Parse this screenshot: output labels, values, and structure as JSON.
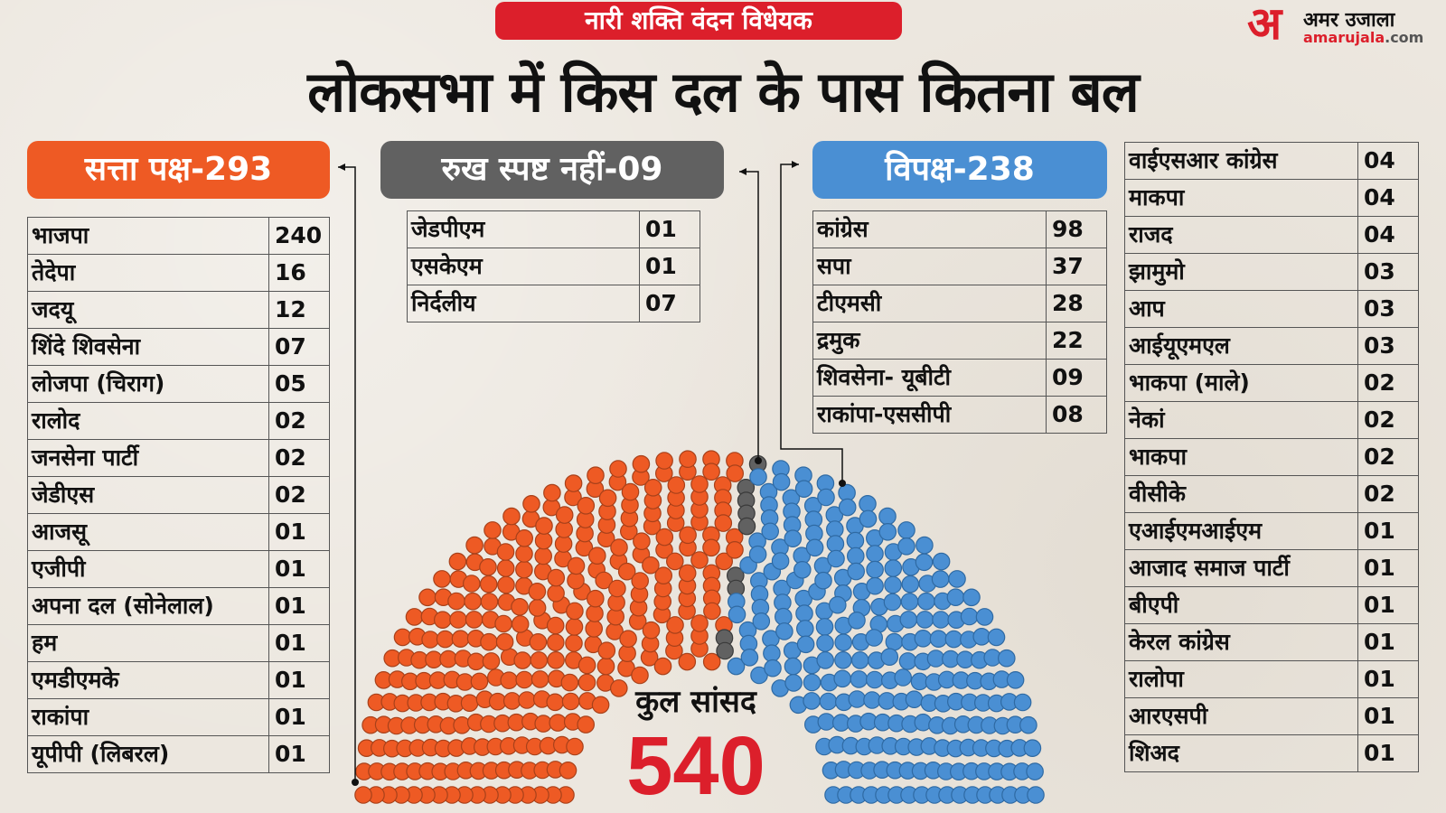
{
  "header": {
    "tag": "नारी शक्ति वंदन विधेयक",
    "headline": "लोकसभा में किस दल के पास कितना बल",
    "logo": {
      "mark": "अ",
      "hindi": "अमर उजाला",
      "site_main": "amarujala",
      "site_tld": ".com"
    }
  },
  "colors": {
    "ruling": "#ee5a24",
    "neutral": "#616161",
    "opposition": "#4a8fd3",
    "accent": "#dc1f2b"
  },
  "groups": {
    "ruling": {
      "label": "सत्ता पक्ष-293",
      "parties": [
        {
          "name": "भाजपा",
          "seats": "240"
        },
        {
          "name": "तेदेपा",
          "seats": "16"
        },
        {
          "name": "जदयू",
          "seats": "12"
        },
        {
          "name": "शिंदे शिवसेना",
          "seats": "07"
        },
        {
          "name": "लोजपा (चिराग)",
          "seats": "05"
        },
        {
          "name": "रालोद",
          "seats": "02"
        },
        {
          "name": "जनसेना पार्टी",
          "seats": "02"
        },
        {
          "name": "जेडीएस",
          "seats": "02"
        },
        {
          "name": "आजसू",
          "seats": "01"
        },
        {
          "name": "एजीपी",
          "seats": "01"
        },
        {
          "name": "अपना दल (सोनेलाल)",
          "seats": "01"
        },
        {
          "name": "हम",
          "seats": "01"
        },
        {
          "name": "एमडीएमके",
          "seats": "01"
        },
        {
          "name": "राकांपा",
          "seats": "01"
        },
        {
          "name": "यूपीपी (लिबरल)",
          "seats": "01"
        }
      ]
    },
    "neutral": {
      "label": "रुख स्पष्ट नहीं-09",
      "parties": [
        {
          "name": "जेडपीएम",
          "seats": "01"
        },
        {
          "name": "एसकेएम",
          "seats": "01"
        },
        {
          "name": "निर्दलीय",
          "seats": "07"
        }
      ]
    },
    "opposition": {
      "label": "विपक्ष-238",
      "parties": [
        {
          "name": "कांग्रेस",
          "seats": "98"
        },
        {
          "name": "सपा",
          "seats": "37"
        },
        {
          "name": "टीएमसी",
          "seats": "28"
        },
        {
          "name": "द्रमुक",
          "seats": "22"
        },
        {
          "name": "शिवसेना- यूबीटी",
          "seats": "09"
        },
        {
          "name": "राकांपा-एससीपी",
          "seats": "08"
        }
      ],
      "parties_more": [
        {
          "name": "वाईएसआर कांग्रेस",
          "seats": "04"
        },
        {
          "name": "माकपा",
          "seats": "04"
        },
        {
          "name": "राजद",
          "seats": "04"
        },
        {
          "name": "झामुमो",
          "seats": "03"
        },
        {
          "name": "आप",
          "seats": "03"
        },
        {
          "name": "आईयूएमएल",
          "seats": "03"
        },
        {
          "name": "भाकपा (माले)",
          "seats": "02"
        },
        {
          "name": "नेकां",
          "seats": "02"
        },
        {
          "name": "भाकपा",
          "seats": "02"
        },
        {
          "name": "वीसीके",
          "seats": "02"
        },
        {
          "name": "एआईएमआईएम",
          "seats": "01"
        },
        {
          "name": "आजाद समाज पार्टी",
          "seats": "01"
        },
        {
          "name": "बीएपी",
          "seats": "01"
        },
        {
          "name": "केरल कांग्रेस",
          "seats": "01"
        },
        {
          "name": "रालोपा",
          "seats": "01"
        },
        {
          "name": "आरएसपी",
          "seats": "01"
        },
        {
          "name": "शिअद",
          "seats": "01"
        }
      ]
    }
  },
  "total": {
    "label": "कुल सांसद",
    "value": "540"
  },
  "chart_data": {
    "type": "parliament",
    "title": "लोकसभा में किस दल के पास कितना बल",
    "categories": [
      "सत्ता पक्ष",
      "रुख स्पष्ट नहीं",
      "विपक्ष"
    ],
    "values": [
      293,
      9,
      238
    ],
    "total": 540,
    "colors": [
      "#ee5a24",
      "#616161",
      "#4a8fd3"
    ],
    "annotation": "कुल सांसद 540"
  }
}
